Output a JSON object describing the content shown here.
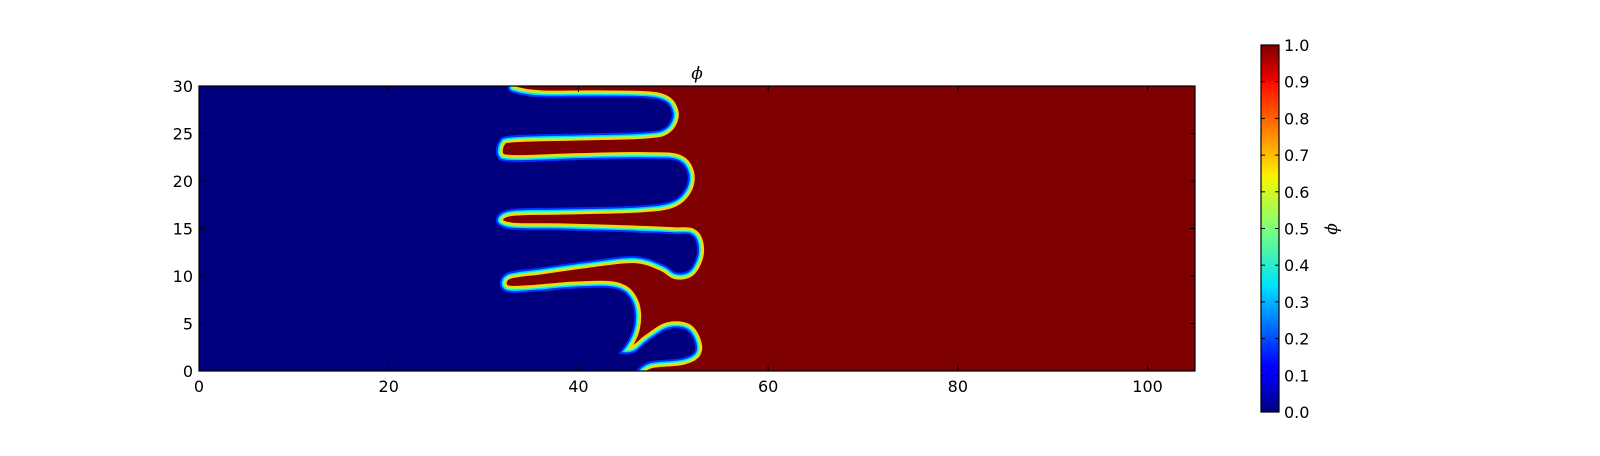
{
  "chart_data": {
    "type": "heatmap",
    "title": "ϕ",
    "xlabel": "",
    "ylabel": "",
    "xlim": [
      0,
      105
    ],
    "ylim": [
      0,
      30
    ],
    "x_ticks": [
      0,
      20,
      40,
      60,
      80,
      100
    ],
    "y_ticks": [
      0,
      5,
      10,
      15,
      20,
      25,
      30
    ],
    "colormap": "jet",
    "colorbar": {
      "label": "ϕ",
      "range": [
        0.0,
        1.0
      ],
      "ticks": [
        "0.0",
        "0.1",
        "0.2",
        "0.3",
        "0.4",
        "0.5",
        "0.6",
        "0.7",
        "0.8",
        "0.9",
        "1.0"
      ]
    },
    "field": {
      "low_value": 0.0,
      "high_value": 1.0,
      "low_region": "left",
      "high_region": "right",
      "interface_fingers": [
        {
          "y": 29.8,
          "x_left": 32.5,
          "x_right": 49.0
        },
        {
          "y": 23.0,
          "x_left": 31.5,
          "x_right": 51.5
        },
        {
          "y": 15.8,
          "x_left": 31.3,
          "x_right": 52.0
        },
        {
          "y": 9.3,
          "x_left": 31.7,
          "x_right": 53.0
        },
        {
          "y": 2.8,
          "x_left": 33.8,
          "x_right": 52.3
        }
      ]
    }
  }
}
